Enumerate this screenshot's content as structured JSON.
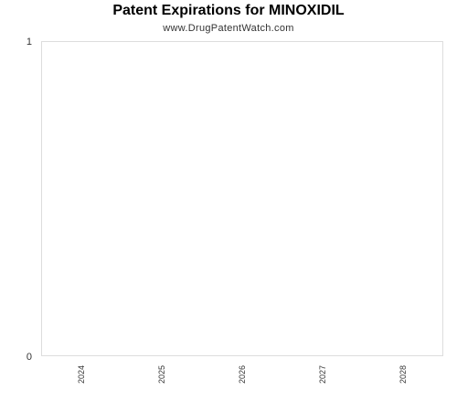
{
  "chart_data": {
    "type": "bar",
    "title": "Patent Expirations for MINOXIDIL",
    "subtitle": "www.DrugPatentWatch.com",
    "categories": [
      "2024",
      "2025",
      "2026",
      "2027",
      "2028"
    ],
    "values": [
      0,
      0,
      0,
      0,
      0
    ],
    "ylim": [
      0,
      1
    ],
    "yticks": [
      "0",
      "1"
    ],
    "xlabel": "",
    "ylabel": "",
    "grid": false
  }
}
